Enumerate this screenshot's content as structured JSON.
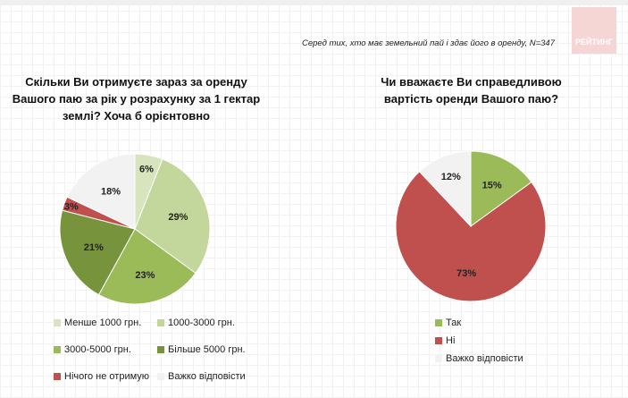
{
  "note": "Серед тих, хто має земельний пай і здає його в оренду, N=347",
  "logo": "РЕЙТИНГ",
  "chart_data": [
    {
      "type": "pie",
      "title": "Скільки Ви отримуєте зараз за оренду Вашого паю за рік у розрахунку за 1 гектар землі? Хоча б орієнтовно",
      "categories": [
        "Менше 1000 грн.",
        "1000-3000 грн.",
        "3000-5000 грн.",
        "Більше 5000 грн.",
        "Нічого не отримую",
        "Важко відповісти"
      ],
      "values": [
        6,
        29,
        23,
        21,
        3,
        18
      ],
      "labels": [
        "6%",
        "29%",
        "23%",
        "21%",
        "3%",
        "18%"
      ],
      "colors": [
        "#d7e4bd",
        "#c3d69b",
        "#9bbb59",
        "#77933c",
        "#c0504d",
        "#f2f2f2"
      ],
      "legend": "bottom"
    },
    {
      "type": "pie",
      "title": "Чи вважаєте Ви справедливою вартість оренди Вашого паю?",
      "categories": [
        "Так",
        "Ні",
        "Важко відповісти"
      ],
      "values": [
        15,
        73,
        12
      ],
      "labels": [
        "15%",
        "73%",
        "12%"
      ],
      "colors": [
        "#9bbb59",
        "#c0504d",
        "#f2f2f2"
      ],
      "legend": "bottom"
    }
  ]
}
